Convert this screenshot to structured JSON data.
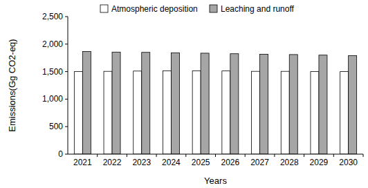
{
  "chart_data": {
    "type": "bar",
    "y_label": "Emissions(Gg CO2-eq)",
    "x_label": "Years",
    "categories": [
      "2021",
      "2022",
      "2023",
      "2024",
      "2025",
      "2026",
      "2027",
      "2028",
      "2029",
      "2030"
    ],
    "series": [
      {
        "name": "Atmospheric deposition",
        "color": "#ffffff",
        "values": [
          1500,
          1505,
          1510,
          1515,
          1515,
          1512,
          1505,
          1505,
          1500,
          1500
        ]
      },
      {
        "name": "Leaching and runoff",
        "color": "#a6a6a6",
        "values": [
          1865,
          1855,
          1850,
          1840,
          1835,
          1825,
          1815,
          1810,
          1800,
          1790
        ]
      }
    ],
    "ylim": [
      0,
      2500
    ],
    "yticks": [
      0,
      500,
      {
        "value": 1000,
        "label": "1,000"
      },
      {
        "value": 1500,
        "label": "1,500"
      },
      {
        "value": 2000,
        "label": "2,000"
      },
      {
        "value": 2500,
        "label": "2,500"
      }
    ],
    "grid": false,
    "legend": "top"
  }
}
